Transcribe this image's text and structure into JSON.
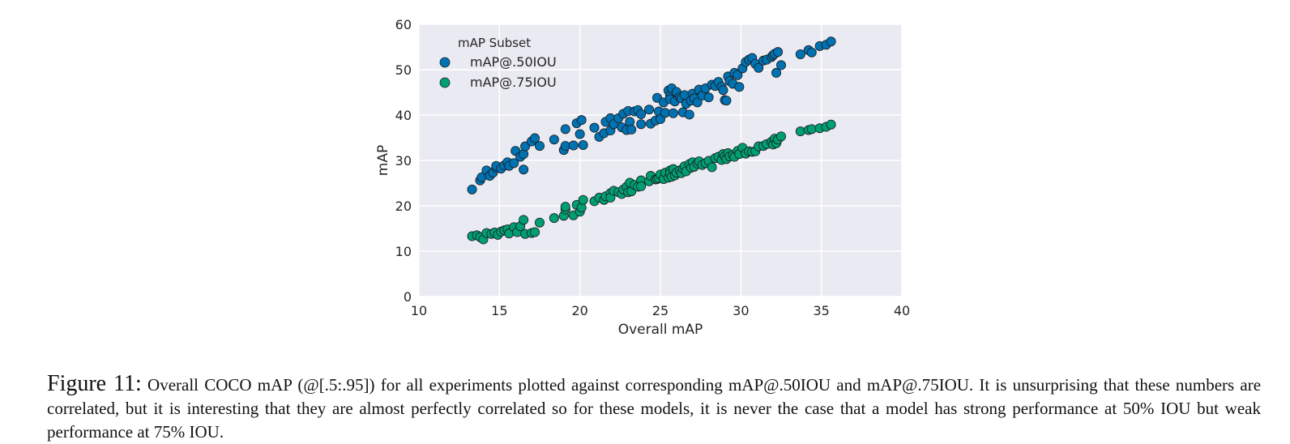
{
  "chart_data": {
    "type": "scatter",
    "xlabel": "Overall mAP",
    "ylabel": "mAP",
    "xlim": [
      10,
      40
    ],
    "ylim": [
      0,
      60
    ],
    "xticks": [
      10,
      15,
      20,
      25,
      30,
      35,
      40
    ],
    "yticks": [
      0,
      10,
      20,
      30,
      40,
      50,
      60
    ],
    "grid": true,
    "legend_position": "top-left",
    "legend_title": "mAP Subset",
    "series": [
      {
        "name": "mAP@.50IOU",
        "color": "#0072b2",
        "points": [
          [
            13.3,
            23.6
          ],
          [
            13.8,
            25.6
          ],
          [
            13.9,
            26.3
          ],
          [
            14.2,
            27.8
          ],
          [
            14.4,
            26.6
          ],
          [
            14.6,
            27.3
          ],
          [
            14.8,
            28.4
          ],
          [
            14.8,
            28.8
          ],
          [
            15.1,
            28.2
          ],
          [
            15.3,
            28.9
          ],
          [
            15.5,
            29.6
          ],
          [
            15.6,
            28.8
          ],
          [
            15.9,
            29.4
          ],
          [
            16.0,
            32.1
          ],
          [
            16.3,
            30.8
          ],
          [
            16.5,
            31.4
          ],
          [
            16.5,
            28.0
          ],
          [
            16.6,
            33.1
          ],
          [
            17.0,
            34.2
          ],
          [
            17.2,
            34.9
          ],
          [
            17.5,
            33.2
          ],
          [
            18.4,
            34.6
          ],
          [
            19.0,
            32.3
          ],
          [
            19.1,
            33.2
          ],
          [
            19.1,
            36.9
          ],
          [
            19.6,
            33.3
          ],
          [
            19.8,
            38.2
          ],
          [
            20.0,
            35.8
          ],
          [
            20.1,
            38.9
          ],
          [
            20.2,
            33.4
          ],
          [
            20.9,
            37.2
          ],
          [
            21.2,
            35.2
          ],
          [
            21.5,
            36.0
          ],
          [
            21.6,
            38.5
          ],
          [
            21.9,
            39.3
          ],
          [
            21.9,
            36.6
          ],
          [
            22.1,
            38.0
          ],
          [
            22.4,
            39.3
          ],
          [
            22.6,
            37.3
          ],
          [
            22.7,
            40.3
          ],
          [
            22.9,
            36.7
          ],
          [
            23.0,
            40.9
          ],
          [
            23.1,
            38.5
          ],
          [
            23.2,
            36.8
          ],
          [
            23.4,
            40.8
          ],
          [
            23.6,
            41.1
          ],
          [
            23.8,
            40.2
          ],
          [
            23.8,
            38.0
          ],
          [
            24.3,
            41.2
          ],
          [
            24.4,
            38.1
          ],
          [
            24.7,
            38.8
          ],
          [
            24.8,
            43.8
          ],
          [
            24.9,
            40.8
          ],
          [
            25.0,
            39.1
          ],
          [
            25.2,
            42.8
          ],
          [
            25.3,
            40.5
          ],
          [
            25.5,
            45.4
          ],
          [
            25.6,
            44.3
          ],
          [
            25.6,
            43.5
          ],
          [
            25.7,
            45.9
          ],
          [
            25.8,
            40.4
          ],
          [
            25.9,
            43.0
          ],
          [
            26.0,
            45.1
          ],
          [
            26.2,
            44.0
          ],
          [
            26.3,
            43.7
          ],
          [
            26.4,
            40.6
          ],
          [
            26.5,
            44.4
          ],
          [
            26.6,
            42.5
          ],
          [
            26.8,
            40.1
          ],
          [
            26.9,
            43.2
          ],
          [
            27.0,
            44.7
          ],
          [
            27.1,
            43.7
          ],
          [
            27.3,
            42.8
          ],
          [
            27.4,
            45.6
          ],
          [
            27.6,
            44.3
          ],
          [
            27.8,
            45.9
          ],
          [
            28.0,
            43.9
          ],
          [
            28.2,
            46.7
          ],
          [
            28.4,
            46.4
          ],
          [
            28.6,
            47.3
          ],
          [
            28.8,
            46.2
          ],
          [
            28.9,
            45.5
          ],
          [
            29.0,
            43.3
          ],
          [
            29.1,
            43.2
          ],
          [
            29.2,
            48.5
          ],
          [
            29.3,
            47.5
          ],
          [
            29.5,
            46.9
          ],
          [
            29.6,
            49.3
          ],
          [
            29.8,
            48.8
          ],
          [
            29.9,
            46.2
          ],
          [
            30.1,
            50.3
          ],
          [
            30.3,
            51.7
          ],
          [
            30.5,
            52.2
          ],
          [
            30.7,
            52.6
          ],
          [
            30.9,
            51.3
          ],
          [
            31.1,
            50.4
          ],
          [
            31.4,
            52.0
          ],
          [
            31.6,
            52.2
          ],
          [
            31.9,
            52.8
          ],
          [
            32.0,
            53.2
          ],
          [
            32.1,
            53.5
          ],
          [
            32.2,
            49.3
          ],
          [
            32.3,
            53.9
          ],
          [
            32.5,
            51.0
          ],
          [
            33.7,
            53.4
          ],
          [
            34.2,
            54.3
          ],
          [
            34.4,
            53.8
          ],
          [
            34.9,
            55.2
          ],
          [
            35.3,
            55.5
          ],
          [
            35.6,
            56.2
          ]
        ]
      },
      {
        "name": "mAP@.75IOU",
        "color": "#009e73",
        "points": [
          [
            13.3,
            13.3
          ],
          [
            13.6,
            13.5
          ],
          [
            13.8,
            13.1
          ],
          [
            14.0,
            12.6
          ],
          [
            14.2,
            14.0
          ],
          [
            14.5,
            13.8
          ],
          [
            14.7,
            14.1
          ],
          [
            14.9,
            13.6
          ],
          [
            15.1,
            14.3
          ],
          [
            15.3,
            14.6
          ],
          [
            15.5,
            14.8
          ],
          [
            15.6,
            13.9
          ],
          [
            15.9,
            15.3
          ],
          [
            16.1,
            14.2
          ],
          [
            16.3,
            15.5
          ],
          [
            16.5,
            16.9
          ],
          [
            16.6,
            13.8
          ],
          [
            17.0,
            14.0
          ],
          [
            17.2,
            14.2
          ],
          [
            17.5,
            16.3
          ],
          [
            18.4,
            17.3
          ],
          [
            19.0,
            17.8
          ],
          [
            19.1,
            19.2
          ],
          [
            19.1,
            19.8
          ],
          [
            19.6,
            17.9
          ],
          [
            19.8,
            20.2
          ],
          [
            20.0,
            18.7
          ],
          [
            20.1,
            19.6
          ],
          [
            20.2,
            21.3
          ],
          [
            20.9,
            21.0
          ],
          [
            21.2,
            21.8
          ],
          [
            21.5,
            21.3
          ],
          [
            21.6,
            22.1
          ],
          [
            21.9,
            22.8
          ],
          [
            21.9,
            21.8
          ],
          [
            22.1,
            23.3
          ],
          [
            22.4,
            23.0
          ],
          [
            22.6,
            22.6
          ],
          [
            22.7,
            23.6
          ],
          [
            22.9,
            24.2
          ],
          [
            23.0,
            23.0
          ],
          [
            23.1,
            25.1
          ],
          [
            23.2,
            23.2
          ],
          [
            23.4,
            24.6
          ],
          [
            23.6,
            24.2
          ],
          [
            23.8,
            25.6
          ],
          [
            23.8,
            24.3
          ],
          [
            24.3,
            25.4
          ],
          [
            24.4,
            26.6
          ],
          [
            24.7,
            25.8
          ],
          [
            24.8,
            25.9
          ],
          [
            24.9,
            26.1
          ],
          [
            25.0,
            26.9
          ],
          [
            25.2,
            25.9
          ],
          [
            25.3,
            27.3
          ],
          [
            25.5,
            26.2
          ],
          [
            25.6,
            27.8
          ],
          [
            25.6,
            27.1
          ],
          [
            25.7,
            26.4
          ],
          [
            25.8,
            28.1
          ],
          [
            25.9,
            26.7
          ],
          [
            26.0,
            27.3
          ],
          [
            26.2,
            27.8
          ],
          [
            26.3,
            27.2
          ],
          [
            26.4,
            28.2
          ],
          [
            26.5,
            28.7
          ],
          [
            26.6,
            27.6
          ],
          [
            26.8,
            29.2
          ],
          [
            26.9,
            28.4
          ],
          [
            27.0,
            29.6
          ],
          [
            27.1,
            28.6
          ],
          [
            27.3,
            29.3
          ],
          [
            27.4,
            29.8
          ],
          [
            27.6,
            29.0
          ],
          [
            27.8,
            29.4
          ],
          [
            28.0,
            29.9
          ],
          [
            28.2,
            28.5
          ],
          [
            28.4,
            30.5
          ],
          [
            28.6,
            30.8
          ],
          [
            28.8,
            30.1
          ],
          [
            28.9,
            31.4
          ],
          [
            29.0,
            30.9
          ],
          [
            29.1,
            30.3
          ],
          [
            29.2,
            31.6
          ],
          [
            29.3,
            30.9
          ],
          [
            29.5,
            31.2
          ],
          [
            29.6,
            30.8
          ],
          [
            29.8,
            32.1
          ],
          [
            29.9,
            31.4
          ],
          [
            30.1,
            32.8
          ],
          [
            30.3,
            31.5
          ],
          [
            30.5,
            32.0
          ],
          [
            30.7,
            31.9
          ],
          [
            30.9,
            32.0
          ],
          [
            31.1,
            33.1
          ],
          [
            31.4,
            33.2
          ],
          [
            31.6,
            33.6
          ],
          [
            31.9,
            34.1
          ],
          [
            32.0,
            33.5
          ],
          [
            32.1,
            34.8
          ],
          [
            32.2,
            33.8
          ],
          [
            32.3,
            34.6
          ],
          [
            32.5,
            35.3
          ],
          [
            33.7,
            36.4
          ],
          [
            34.2,
            36.7
          ],
          [
            34.4,
            36.9
          ],
          [
            34.9,
            37.1
          ],
          [
            35.3,
            37.4
          ],
          [
            35.6,
            37.9
          ]
        ]
      }
    ]
  },
  "caption": {
    "label": "Figure 11:",
    "text": "Overall COCO mAP (@[.5:.95]) for all experiments plotted against corresponding mAP@.50IOU and mAP@.75IOU. It is unsurprising that these numbers are correlated, but it is interesting that they are almost perfectly correlated so for these models, it is never the case that a model has strong performance at 50% IOU but weak performance at 75% IOU."
  }
}
